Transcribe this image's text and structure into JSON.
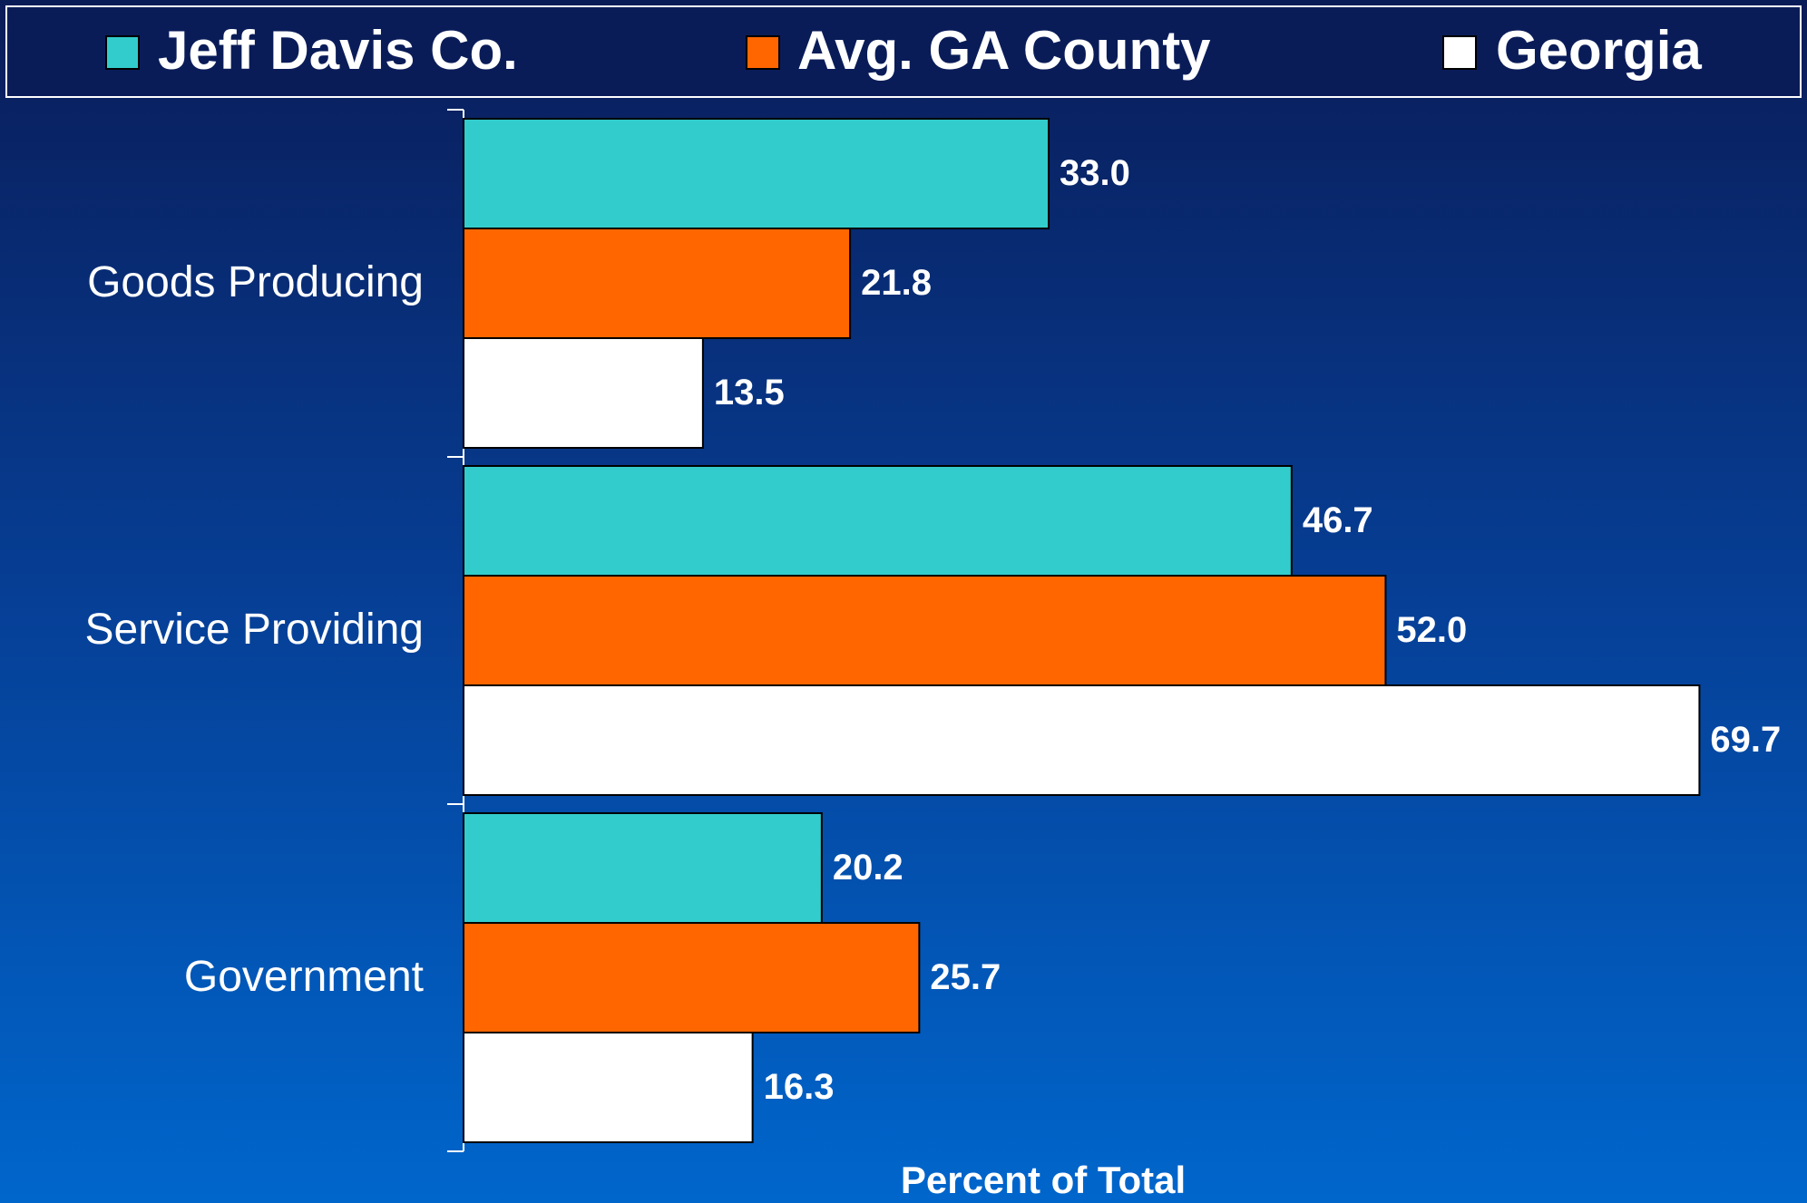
{
  "chart_data": {
    "type": "barh",
    "categories": [
      "Goods Producing",
      "Service Providing",
      "Government"
    ],
    "series": [
      {
        "name": "Jeff Davis Co.",
        "color": "#33cccc",
        "values": [
          33.0,
          46.7,
          20.2
        ],
        "value_labels": [
          "33.0",
          "46.7",
          "20.2"
        ]
      },
      {
        "name": "Avg. GA County",
        "color": "#ff6600",
        "values": [
          21.8,
          52.0,
          25.7
        ],
        "value_labels": [
          "21.8",
          "52.0",
          "25.7"
        ]
      },
      {
        "name": "Georgia",
        "color": "#ffffff",
        "values": [
          13.5,
          69.7,
          16.3
        ],
        "value_labels": [
          "13.5",
          "69.7",
          "16.3"
        ]
      }
    ],
    "xlabel": "Percent of Total",
    "xlim": [
      0,
      75
    ]
  }
}
